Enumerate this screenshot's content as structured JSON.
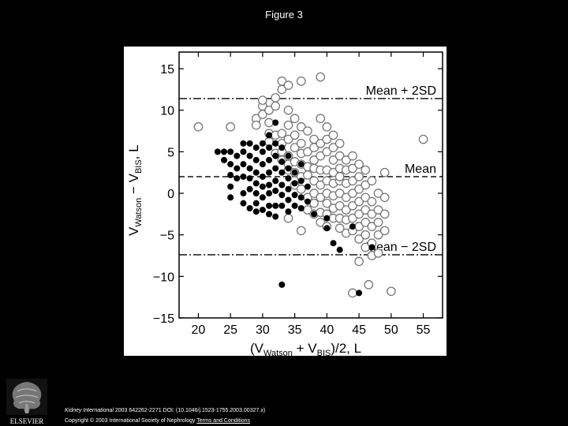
{
  "header": {
    "title": "Figure 3"
  },
  "chart_data": {
    "type": "scatter",
    "xlabel_main": "(V",
    "xlabel_sub1": "Watson",
    "xlabel_mid": " + V",
    "xlabel_sub2": "BIS",
    "xlabel_tail": ")/2, L",
    "ylabel_main1": "V",
    "ylabel_sub1": "Watson",
    "ylabel_mid": " − V",
    "ylabel_sub2": "BIS",
    "ylabel_tail": ", L",
    "xlim": [
      17,
      58
    ],
    "ylim": [
      -15,
      17
    ],
    "x_ticks": [
      20,
      25,
      30,
      35,
      40,
      45,
      50,
      55
    ],
    "y_ticks": [
      -15,
      -10,
      -5,
      0,
      5,
      10,
      15
    ],
    "reference_lines": [
      {
        "label": "Mean + 2SD",
        "y": 11.4
      },
      {
        "label": "Mean",
        "y": 2.0
      },
      {
        "label": "Mean − 2SD",
        "y": -7.4
      }
    ],
    "series": [
      {
        "marker": "open",
        "points": [
          [
            20,
            8
          ],
          [
            25,
            8
          ],
          [
            29,
            9
          ],
          [
            29,
            8.2
          ],
          [
            30,
            10.5
          ],
          [
            30,
            11.2
          ],
          [
            30,
            9.5
          ],
          [
            31,
            10
          ],
          [
            31,
            8.5
          ],
          [
            31,
            7.2
          ],
          [
            31,
            6.2
          ],
          [
            32,
            10.5
          ],
          [
            32,
            11.5
          ],
          [
            32,
            7
          ],
          [
            32,
            5.5
          ],
          [
            32,
            4.8
          ],
          [
            33,
            13.5
          ],
          [
            33,
            12.5
          ],
          [
            33,
            7.2
          ],
          [
            33,
            6
          ],
          [
            33,
            5
          ],
          [
            33,
            4
          ],
          [
            34,
            13
          ],
          [
            34,
            10
          ],
          [
            34,
            8.2
          ],
          [
            34,
            6.5
          ],
          [
            34,
            4.5
          ],
          [
            34,
            3.5
          ],
          [
            34,
            2.8
          ],
          [
            35,
            9
          ],
          [
            35,
            7
          ],
          [
            35,
            5.5
          ],
          [
            35,
            3.8
          ],
          [
            35,
            2.5
          ],
          [
            35,
            1
          ],
          [
            36,
            13.5
          ],
          [
            36,
            8
          ],
          [
            36,
            6
          ],
          [
            36,
            4.8
          ],
          [
            36,
            3.5
          ],
          [
            36,
            2
          ],
          [
            36,
            0.5
          ],
          [
            37,
            7.5
          ],
          [
            37,
            5
          ],
          [
            37,
            3.2
          ],
          [
            37,
            2.2
          ],
          [
            37,
            -0.5
          ],
          [
            37,
            -2
          ],
          [
            38,
            6.5
          ],
          [
            38,
            5.5
          ],
          [
            38,
            4
          ],
          [
            38,
            3
          ],
          [
            38,
            1.5
          ],
          [
            38,
            0
          ],
          [
            38,
            -1.2
          ],
          [
            38,
            -2.5
          ],
          [
            39,
            14
          ],
          [
            39,
            9
          ],
          [
            39,
            6
          ],
          [
            39,
            4.5
          ],
          [
            39,
            2.8
          ],
          [
            39,
            1
          ],
          [
            39,
            -0.5
          ],
          [
            39,
            -2.3
          ],
          [
            39,
            -3.5
          ],
          [
            40,
            8
          ],
          [
            40,
            6.5
          ],
          [
            40,
            5
          ],
          [
            40,
            2.8
          ],
          [
            40,
            1.5
          ],
          [
            40,
            0
          ],
          [
            40,
            -1.2
          ],
          [
            40,
            -2.5
          ],
          [
            40,
            -4
          ],
          [
            41,
            7
          ],
          [
            41,
            5.5
          ],
          [
            41,
            4
          ],
          [
            41,
            2.5
          ],
          [
            41,
            1.2
          ],
          [
            41,
            -0.3
          ],
          [
            41,
            -1.8
          ],
          [
            41,
            -3
          ],
          [
            42,
            6
          ],
          [
            42,
            4.5
          ],
          [
            42,
            3
          ],
          [
            42,
            1.5
          ],
          [
            42,
            0
          ],
          [
            42,
            -1.5
          ],
          [
            42,
            -3
          ],
          [
            42,
            -4.2
          ],
          [
            43,
            4
          ],
          [
            43,
            2.8
          ],
          [
            43,
            1.2
          ],
          [
            43,
            -0.5
          ],
          [
            43,
            -2
          ],
          [
            43,
            -3.2
          ],
          [
            43,
            -4.8
          ],
          [
            44,
            4.5
          ],
          [
            44,
            3
          ],
          [
            44,
            1.5
          ],
          [
            44,
            0
          ],
          [
            44,
            -1.5
          ],
          [
            44,
            -3
          ],
          [
            44,
            -4.5
          ],
          [
            45,
            3.5
          ],
          [
            45,
            2
          ],
          [
            45,
            0.5
          ],
          [
            45,
            -1
          ],
          [
            45,
            -2.5
          ],
          [
            45,
            -4
          ],
          [
            45,
            -5.5
          ],
          [
            46,
            2.8
          ],
          [
            46,
            1
          ],
          [
            46,
            -0.5
          ],
          [
            46,
            -2
          ],
          [
            46,
            -3.5
          ],
          [
            46,
            -5
          ],
          [
            46,
            -6.5
          ],
          [
            47,
            1.5
          ],
          [
            47,
            -1
          ],
          [
            47,
            -2.5
          ],
          [
            47,
            -4
          ],
          [
            47,
            -6
          ],
          [
            47,
            -7.5
          ],
          [
            48,
            0
          ],
          [
            48,
            -2
          ],
          [
            48,
            -3.5
          ],
          [
            48,
            -5
          ],
          [
            49,
            2.5
          ],
          [
            49,
            -0.5
          ],
          [
            49,
            -2.5
          ],
          [
            49,
            -4.5
          ],
          [
            44,
            -12
          ],
          [
            46.5,
            -11
          ],
          [
            50,
            -11.8
          ],
          [
            55,
            6.5
          ],
          [
            42,
            2
          ],
          [
            45,
            -8.2
          ],
          [
            48,
            -7.2
          ],
          [
            36,
            -4.5
          ],
          [
            34,
            -3
          ]
        ]
      },
      {
        "marker": "filled",
        "points": [
          [
            23,
            5
          ],
          [
            24,
            5
          ],
          [
            24,
            4
          ],
          [
            25,
            5
          ],
          [
            25,
            3.5
          ],
          [
            25,
            2.2
          ],
          [
            25,
            0.8
          ],
          [
            25,
            -0.5
          ],
          [
            26,
            4.5
          ],
          [
            26,
            3
          ],
          [
            26,
            1.8
          ],
          [
            27,
            6
          ],
          [
            27,
            5
          ],
          [
            27,
            3.5
          ],
          [
            27,
            2
          ],
          [
            27,
            0
          ],
          [
            27,
            -1.2
          ],
          [
            28,
            6
          ],
          [
            28,
            4.5
          ],
          [
            28,
            3
          ],
          [
            28,
            1.8
          ],
          [
            28,
            0.5
          ],
          [
            28,
            -1.8
          ],
          [
            29,
            5.5
          ],
          [
            29,
            4
          ],
          [
            29,
            2.5
          ],
          [
            29,
            1.2
          ],
          [
            29,
            0
          ],
          [
            29,
            -1.2
          ],
          [
            29,
            -2.2
          ],
          [
            30,
            6
          ],
          [
            30,
            5
          ],
          [
            30,
            3.5
          ],
          [
            30,
            2
          ],
          [
            30,
            0.8
          ],
          [
            30,
            -0.5
          ],
          [
            30,
            -2
          ],
          [
            31,
            7
          ],
          [
            31,
            5.5
          ],
          [
            31,
            4
          ],
          [
            31,
            2.5
          ],
          [
            31,
            1
          ],
          [
            31,
            0
          ],
          [
            31,
            -1.5
          ],
          [
            31,
            -2.5
          ],
          [
            32,
            8.5
          ],
          [
            32,
            6
          ],
          [
            32,
            4.5
          ],
          [
            32,
            3
          ],
          [
            32,
            1.5
          ],
          [
            32,
            0.3
          ],
          [
            32,
            -1.5
          ],
          [
            32,
            -2.8
          ],
          [
            33,
            5.5
          ],
          [
            33,
            3.8
          ],
          [
            33,
            2.5
          ],
          [
            33,
            1
          ],
          [
            33,
            -0.2
          ],
          [
            33,
            -1.5
          ],
          [
            34,
            4.5
          ],
          [
            34,
            3
          ],
          [
            34,
            1.8
          ],
          [
            34,
            0.5
          ],
          [
            34,
            -0.8
          ],
          [
            34,
            -2.2
          ],
          [
            35,
            2.5
          ],
          [
            35,
            1.2
          ],
          [
            35,
            -0.2
          ],
          [
            35,
            -1.5
          ],
          [
            36,
            3.5
          ],
          [
            36,
            1.5
          ],
          [
            36,
            -0.5
          ],
          [
            36,
            -1.8
          ],
          [
            37,
            0.8
          ],
          [
            37,
            -1
          ],
          [
            38,
            -2.5
          ],
          [
            40,
            -3
          ],
          [
            40,
            -4.2
          ],
          [
            41,
            -6
          ],
          [
            42,
            -6.8
          ],
          [
            44,
            -4
          ],
          [
            47,
            -6.5
          ],
          [
            33,
            -11
          ],
          [
            45,
            -12
          ]
        ]
      }
    ]
  },
  "logo": {
    "name": "ELSEVIER"
  },
  "footer": {
    "journal": "Kidney International",
    "citation_rest": " 2003 642262-2271 DOI: (10.1046/j.1523-1755.2003.00327.x)",
    "copyright_text": "Copyright © 2003 International Society of Nephrology ",
    "terms": "Terms and Conditions"
  }
}
